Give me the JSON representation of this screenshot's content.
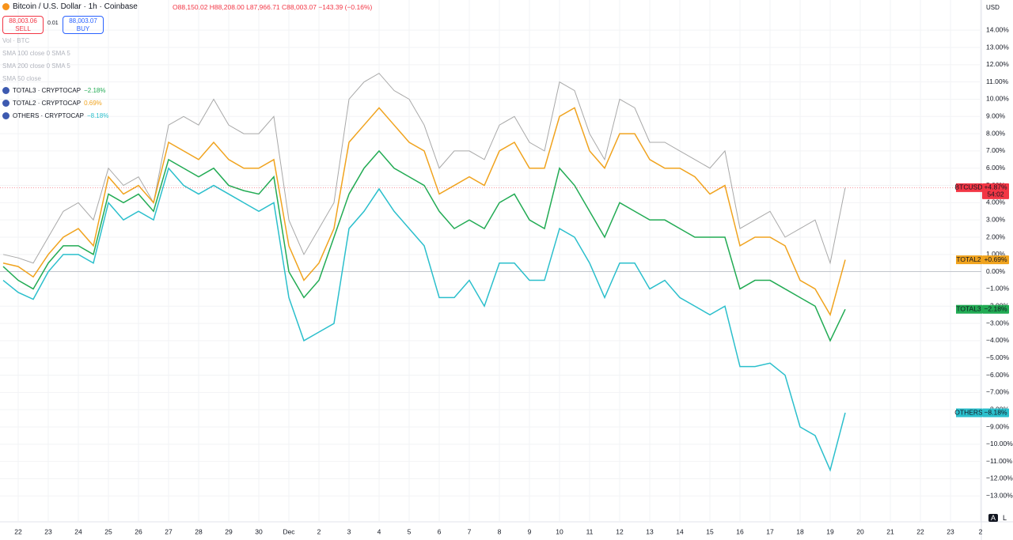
{
  "header": {
    "title": "Bitcoin / U.S. Dollar · 1h · Coinbase",
    "ohlc": "O88,150.02 H88,208.00 L87,966.71 C88,003.07 −143.39 (−0.16%)",
    "sell_price": "88,003.06",
    "sell": "SELL",
    "spread": "0.01",
    "buy_price": "88,003.07",
    "buy": "BUY",
    "currency": "USD"
  },
  "indicators": [
    "Vol · BTC",
    "SMA 100 close 0 SMA 5",
    "SMA 200 close 0 SMA 5",
    "SMA 50 close"
  ],
  "footer": {
    "auto": "A",
    "log": "L"
  },
  "chart_data": {
    "type": "line",
    "categories": [
      null,
      "22",
      null,
      "23",
      null,
      "24",
      null,
      "25",
      null,
      "26",
      null,
      "27",
      null,
      "28",
      null,
      "29",
      null,
      "30",
      null,
      "Dec",
      null,
      "2",
      null,
      "3",
      null,
      "4",
      null,
      "5",
      null,
      "6",
      null,
      "7",
      null,
      "8",
      null,
      "9",
      null,
      "10",
      null,
      "11",
      null,
      "12",
      null,
      "13",
      null,
      "14",
      null,
      "15",
      null,
      "16",
      null,
      "17",
      null,
      "18",
      null,
      "19",
      null,
      "20",
      null,
      "21",
      null,
      "22",
      null,
      "23",
      null,
      "2"
    ],
    "series": [
      {
        "name": "BTCUSD",
        "tag_value": "+4.87%",
        "countdown": "54:02",
        "color": "#a8a8a8",
        "tag_color": "#f23645",
        "values": [
          1.0,
          0.8,
          0.5,
          2.0,
          3.5,
          4.0,
          3.0,
          6.0,
          5.0,
          5.5,
          4.0,
          8.5,
          9.0,
          8.5,
          10.0,
          8.5,
          8.0,
          8.0,
          9.0,
          3.0,
          1.0,
          2.5,
          4.0,
          10.0,
          11.0,
          11.5,
          10.5,
          10.0,
          8.5,
          6.0,
          7.0,
          7.0,
          6.5,
          8.5,
          9.0,
          7.5,
          7.0,
          11.0,
          10.5,
          8.0,
          6.5,
          10.0,
          9.5,
          7.5,
          7.5,
          7.0,
          6.5,
          6.0,
          7.0,
          2.5,
          3.0,
          3.5,
          2.0,
          2.5,
          3.0,
          0.5,
          4.87,
          null,
          null,
          null,
          null,
          null,
          null,
          null,
          null,
          null
        ]
      },
      {
        "name": "TOTAL3",
        "legend": "TOTAL3 · CRYPTOCAP",
        "legend_value": "−2.18%",
        "tag_value": "−2.18%",
        "color": "#22ab54",
        "tag_color": "#22ab54",
        "values": [
          0.3,
          -0.5,
          -1.0,
          0.5,
          1.5,
          1.5,
          1.0,
          4.5,
          4.0,
          4.5,
          3.5,
          6.5,
          6.0,
          5.5,
          6.0,
          5.0,
          4.7,
          4.5,
          5.5,
          0,
          -1.5,
          -0.5,
          2.0,
          4.5,
          6.0,
          7.0,
          6.0,
          5.5,
          5.0,
          3.5,
          2.5,
          3.0,
          2.5,
          4.0,
          4.5,
          3.0,
          2.5,
          6.0,
          5.0,
          3.5,
          2.0,
          4.0,
          3.5,
          3.0,
          3.0,
          2.5,
          2.0,
          2.0,
          2.0,
          -1.0,
          -0.5,
          -0.5,
          -1.0,
          -1.5,
          -2.0,
          -4.0,
          -2.18,
          null,
          null,
          null,
          null,
          null,
          null,
          null,
          null,
          null
        ]
      },
      {
        "name": "TOTAL2",
        "legend": "TOTAL2 · CRYPTOCAP",
        "legend_value": "0.69%",
        "tag_value": "+0.69%",
        "color": "#f0a31e",
        "tag_color": "#f0a31e",
        "values": [
          0.5,
          0.3,
          -0.3,
          1.0,
          2.0,
          2.5,
          1.5,
          5.5,
          4.5,
          5.0,
          4.0,
          7.5,
          7.0,
          6.5,
          7.5,
          6.5,
          6.0,
          6.0,
          6.5,
          1.5,
          -0.5,
          0.5,
          2.5,
          7.5,
          8.5,
          9.5,
          8.5,
          7.5,
          7.0,
          4.5,
          5.0,
          5.5,
          5.0,
          7.0,
          7.5,
          6.0,
          6.0,
          9.0,
          9.5,
          7.0,
          6.0,
          8.0,
          8.0,
          6.5,
          6.0,
          6.0,
          5.5,
          4.5,
          5.0,
          1.5,
          2.0,
          2.0,
          1.5,
          -0.5,
          -1.0,
          -2.5,
          0.69,
          null,
          null,
          null,
          null,
          null,
          null,
          null,
          null,
          null
        ]
      },
      {
        "name": "OTHERS",
        "legend": "OTHERS · CRYPTOCAP",
        "legend_value": "−8.18%",
        "tag_value": "−8.18%",
        "color": "#2bbfcc",
        "tag_color": "#2bbfcc",
        "values": [
          -0.5,
          -1.2,
          -1.6,
          0,
          1.0,
          1.0,
          0.5,
          4.0,
          3.0,
          3.5,
          3.0,
          6.0,
          5.0,
          4.5,
          5.0,
          4.5,
          4.0,
          3.5,
          4.0,
          -1.5,
          -4.0,
          -3.5,
          -3.0,
          2.5,
          3.5,
          4.8,
          3.5,
          2.5,
          1.5,
          -1.5,
          -1.5,
          -0.5,
          -2.0,
          0.5,
          0.5,
          -0.5,
          -0.5,
          2.5,
          2.0,
          0.5,
          -1.5,
          0.5,
          0.5,
          -1.0,
          -0.5,
          -1.5,
          -2.0,
          -2.5,
          -2.0,
          -5.5,
          -5.5,
          -5.3,
          -6.0,
          -9.0,
          -9.5,
          -11.5,
          -8.18,
          null,
          null,
          null,
          null,
          null,
          null,
          null,
          null,
          null
        ]
      }
    ],
    "ylim": [
      -14.5,
      15.75
    ],
    "yticks": [
      {
        "value": 14,
        "label": "14.00%"
      },
      {
        "value": 13,
        "label": "13.00%"
      },
      {
        "value": 12,
        "label": "12.00%"
      },
      {
        "value": 11,
        "label": "11.00%"
      },
      {
        "value": 10,
        "label": "10.00%"
      },
      {
        "value": 9,
        "label": "9.00%"
      },
      {
        "value": 8,
        "label": "8.00%"
      },
      {
        "value": 7,
        "label": "7.00%"
      },
      {
        "value": 6,
        "label": "6.00%"
      },
      {
        "value": 5,
        "label": "5.00%"
      },
      {
        "value": 4,
        "label": "4.00%"
      },
      {
        "value": 3,
        "label": "3.00%"
      },
      {
        "value": 2,
        "label": "2.00%"
      },
      {
        "value": 1,
        "label": "1.00%"
      },
      {
        "value": 0,
        "label": "0.00%"
      },
      {
        "value": -1,
        "label": "−1.00%"
      },
      {
        "value": -2,
        "label": "−2.00%"
      },
      {
        "value": -3,
        "label": "−3.00%"
      },
      {
        "value": -4,
        "label": "−4.00%"
      },
      {
        "value": -5,
        "label": "−5.00%"
      },
      {
        "value": -6,
        "label": "−6.00%"
      },
      {
        "value": -7,
        "label": "−7.00%"
      },
      {
        "value": -8,
        "label": "−8.00%"
      },
      {
        "value": -9,
        "label": "−9.00%"
      },
      {
        "value": -10,
        "label": "−10.00%"
      },
      {
        "value": -11,
        "label": "−11.00%"
      },
      {
        "value": -12,
        "label": "−12.00%"
      },
      {
        "value": -13,
        "label": "−13.00%"
      }
    ],
    "grid": true
  }
}
